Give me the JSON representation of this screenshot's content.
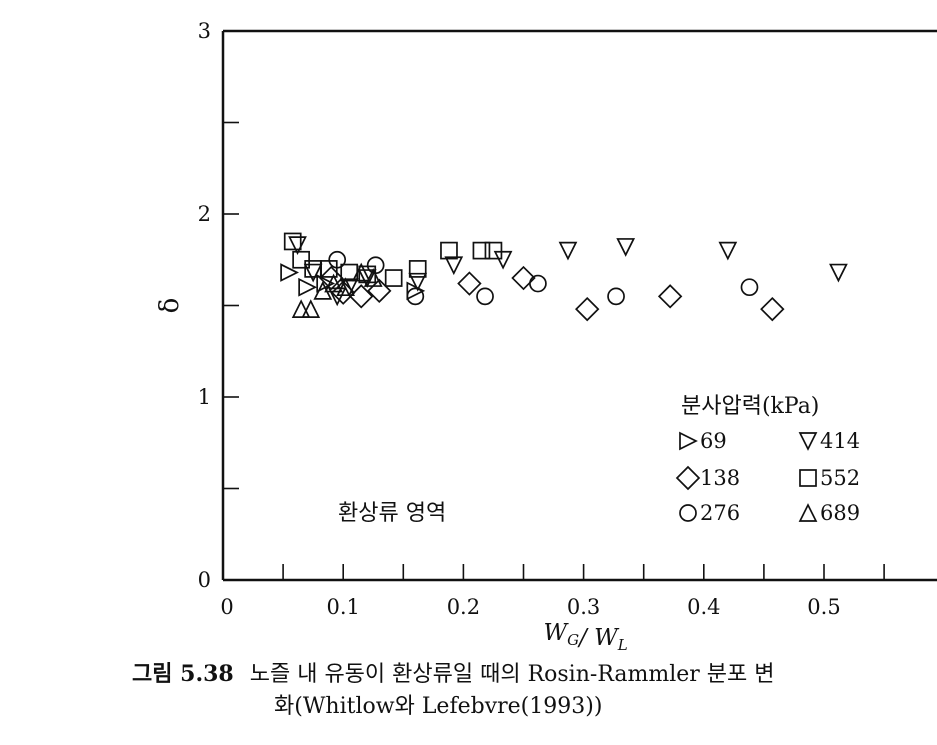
{
  "chart_data": {
    "type": "scatter",
    "xlabel": "W_G/ W_L",
    "ylabel": "δ",
    "xlim": [
      0,
      0.6
    ],
    "ylim": [
      0,
      3
    ],
    "x_ticks": [
      {
        "value": 0,
        "label": "0"
      },
      {
        "value": 0.1,
        "label": "0.1"
      },
      {
        "value": 0.2,
        "label": "0.2"
      },
      {
        "value": 0.3,
        "label": "0.3"
      },
      {
        "value": 0.4,
        "label": "0.4"
      },
      {
        "value": 0.5,
        "label": "0.5"
      }
    ],
    "y_ticks": [
      {
        "value": 0,
        "label": "0"
      },
      {
        "value": 1,
        "label": "1"
      },
      {
        "value": 2,
        "label": "2"
      },
      {
        "value": 3,
        "label": "3"
      }
    ],
    "legend_title": "분사압력(kPa)",
    "legend_placement": "lower-right",
    "annotation": "환상류 영역",
    "series": [
      {
        "name": "69",
        "marker": "triangle-right",
        "x": [
          0.055,
          0.07,
          0.085,
          0.16
        ],
        "y": [
          1.68,
          1.6,
          1.62,
          1.58
        ]
      },
      {
        "name": "138",
        "marker": "diamond",
        "x": [
          0.09,
          0.1,
          0.115,
          0.13,
          0.205,
          0.25,
          0.303,
          0.372,
          0.457
        ],
        "y": [
          1.65,
          1.57,
          1.55,
          1.58,
          1.62,
          1.65,
          1.48,
          1.55,
          1.48
        ]
      },
      {
        "name": "276",
        "marker": "circle",
        "x": [
          0.095,
          0.127,
          0.16,
          0.218,
          0.262,
          0.327,
          0.438
        ],
        "y": [
          1.75,
          1.72,
          1.55,
          1.55,
          1.62,
          1.55,
          1.6
        ]
      },
      {
        "name": "414",
        "marker": "triangle-down",
        "x": [
          0.062,
          0.075,
          0.095,
          0.105,
          0.12,
          0.162,
          0.192,
          0.233,
          0.287,
          0.335,
          0.42,
          0.512
        ],
        "y": [
          1.83,
          1.68,
          1.55,
          1.6,
          1.65,
          1.63,
          1.72,
          1.75,
          1.8,
          1.82,
          1.8,
          1.68
        ]
      },
      {
        "name": "552",
        "marker": "square",
        "x": [
          0.058,
          0.065,
          0.075,
          0.088,
          0.105,
          0.12,
          0.142,
          0.162,
          0.188,
          0.215,
          0.225
        ],
        "y": [
          1.85,
          1.75,
          1.7,
          1.7,
          1.68,
          1.67,
          1.65,
          1.7,
          1.8,
          1.8,
          1.8
        ]
      },
      {
        "name": "689",
        "marker": "triangle-up",
        "x": [
          0.065,
          0.073,
          0.083,
          0.092,
          0.102,
          0.115,
          0.125
        ],
        "y": [
          1.48,
          1.48,
          1.58,
          1.62,
          1.6,
          1.68,
          1.65
        ]
      }
    ]
  },
  "caption": {
    "number": "그림 5.38",
    "line1": "노즐 내 유동이 환상류일 때의 Rosin-Rammler 분포 변",
    "line2": "화(Whitlow와 Lefebvre(1993))"
  }
}
